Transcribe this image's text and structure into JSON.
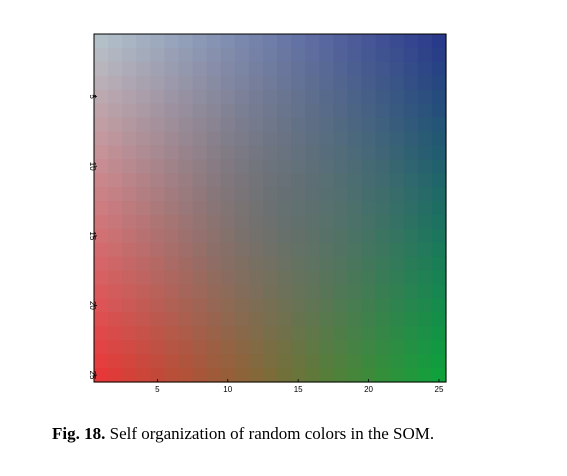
{
  "chart_data": {
    "type": "heatmap",
    "rows": 25,
    "cols": 25,
    "corner_colors": {
      "top_left": "#b4c0c8",
      "top_right": "#2a3a8a",
      "bottom_left": "#e63838",
      "bottom_right": "#10a03c",
      "center": "#5a6a72"
    },
    "x_ticks": [
      5,
      10,
      15,
      20,
      25
    ],
    "y_ticks": [
      5,
      10,
      15,
      20,
      25
    ],
    "x_tick_labels": [
      "5",
      "10",
      "15",
      "20",
      "25"
    ],
    "y_tick_labels": [
      "5",
      "10",
      "15",
      "20",
      "25"
    ],
    "xlim": [
      0.5,
      25.5
    ],
    "ylim": [
      0.5,
      25.5
    ],
    "y_axis_reversed": true
  },
  "caption": {
    "label": "Fig. 18.",
    "text": " Self organization of random colors in the SOM."
  }
}
